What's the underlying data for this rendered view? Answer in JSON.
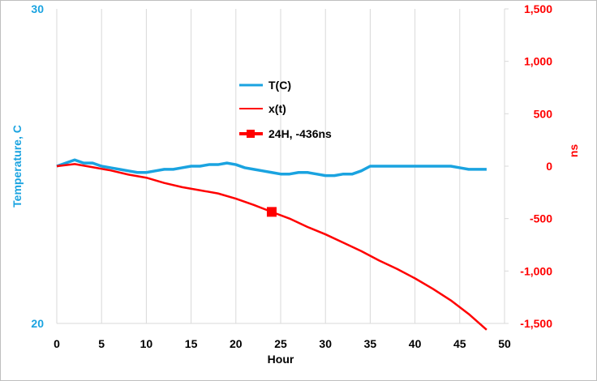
{
  "chart_data": {
    "type": "line",
    "xlabel": "Hour",
    "ylabel_left": "Temperature, C",
    "ylabel_right": "ns",
    "xlim": [
      0,
      50
    ],
    "x_ticks": [
      0,
      5,
      10,
      15,
      20,
      25,
      30,
      35,
      40,
      45,
      50
    ],
    "ylim_left": [
      20,
      30
    ],
    "y_ticks_left": [
      "30",
      "20"
    ],
    "ylim_right": [
      -1500,
      1500
    ],
    "y_ticks_right": [
      1500,
      1000,
      500,
      0,
      -500,
      -1000,
      -1500
    ],
    "y_tick_labels_right": [
      "1,500",
      "1,000",
      "500",
      "0",
      "-500",
      "-1,000",
      "-1,500"
    ],
    "grid": "vertical",
    "legend_position": "upper-center",
    "colors": {
      "temperature": "#1aa3e0",
      "ns": "#ff0000",
      "axis": "#d9d9d9"
    },
    "series": [
      {
        "name": "T(C)",
        "axis": "left",
        "color": "#1aa3e0",
        "x": [
          0,
          1,
          2,
          3,
          4,
          5,
          6,
          7,
          8,
          9,
          10,
          11,
          12,
          13,
          14,
          15,
          16,
          17,
          18,
          19,
          20,
          21,
          22,
          23,
          24,
          25,
          26,
          27,
          28,
          29,
          30,
          31,
          32,
          33,
          34,
          35,
          36,
          37,
          38,
          39,
          40,
          41,
          42,
          43,
          44,
          45,
          46,
          47,
          48
        ],
        "values": [
          25.0,
          25.1,
          25.2,
          25.1,
          25.1,
          25.0,
          24.95,
          24.9,
          24.85,
          24.8,
          24.8,
          24.85,
          24.9,
          24.9,
          24.95,
          25.0,
          25.0,
          25.05,
          25.05,
          25.1,
          25.05,
          24.95,
          24.9,
          24.85,
          24.8,
          24.75,
          24.75,
          24.8,
          24.8,
          24.75,
          24.7,
          24.7,
          24.75,
          24.75,
          24.85,
          25.0,
          25.0,
          25.0,
          25.0,
          25.0,
          25.0,
          25.0,
          25.0,
          25.0,
          25.0,
          24.95,
          24.9,
          24.9,
          24.9
        ]
      },
      {
        "name": "x(t)",
        "axis": "right",
        "color": "#ff0000",
        "x": [
          0,
          2,
          4,
          6,
          8,
          10,
          12,
          14,
          16,
          18,
          20,
          22,
          24,
          26,
          28,
          30,
          32,
          34,
          36,
          38,
          40,
          42,
          44,
          46,
          48
        ],
        "values": [
          0,
          20,
          -10,
          -40,
          -80,
          -110,
          -160,
          -200,
          -230,
          -260,
          -310,
          -370,
          -436,
          -500,
          -580,
          -650,
          -730,
          -810,
          -900,
          -980,
          -1070,
          -1170,
          -1280,
          -1410,
          -1560
        ]
      },
      {
        "name": "24H, -436ns",
        "axis": "right",
        "color": "#ff0000",
        "marker": "square",
        "x": [
          24
        ],
        "values": [
          -436
        ]
      }
    ]
  }
}
